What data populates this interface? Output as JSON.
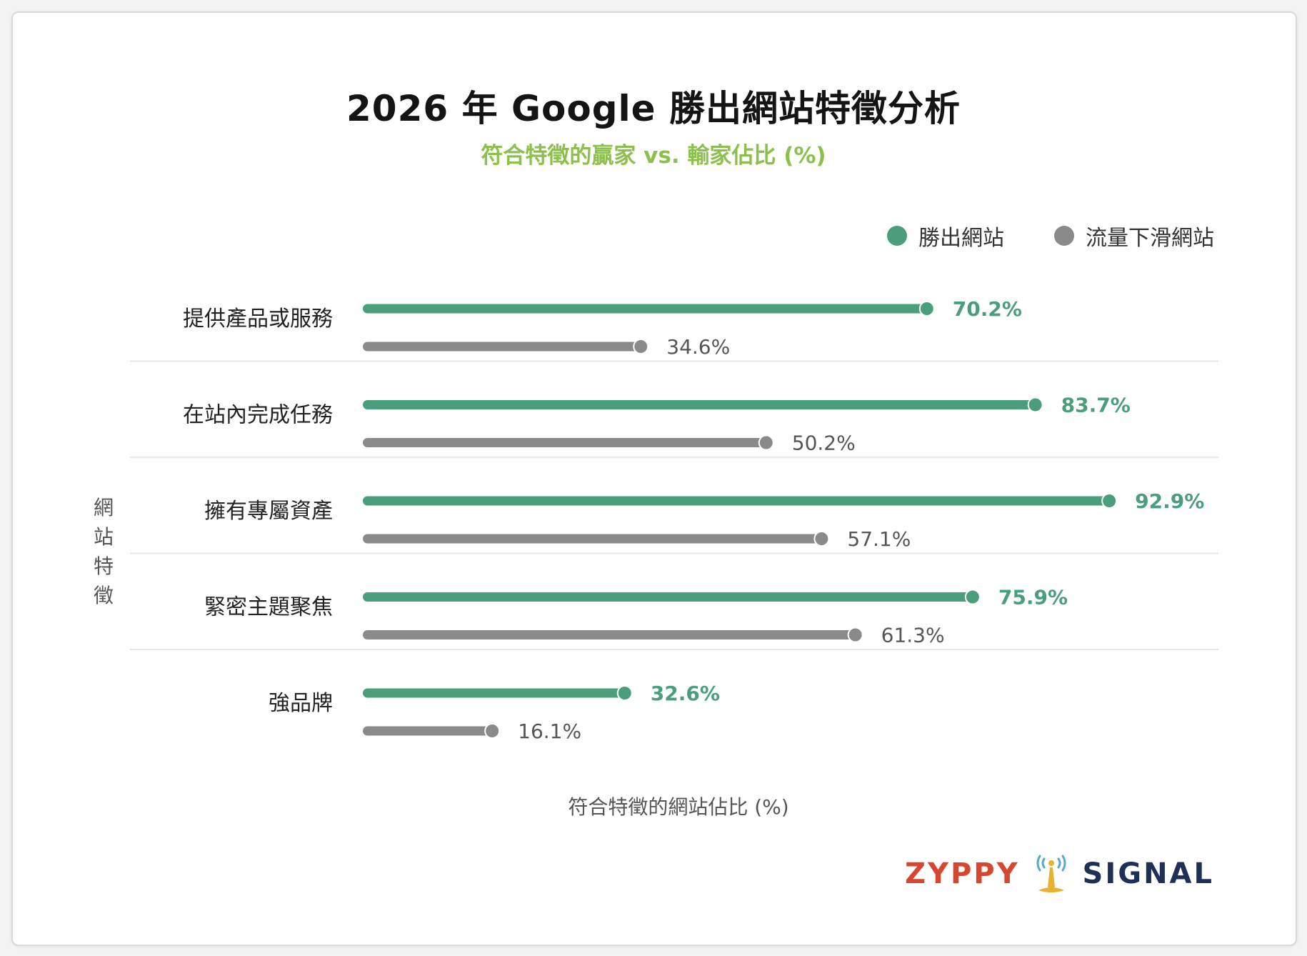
{
  "title": "2026 年 Google 勝出網站特徵分析",
  "subtitle": "符合特徵的贏家 vs. 輸家佔比 (%)",
  "colors": {
    "winner": "#4a9e7c",
    "loser": "#8a8a8a",
    "subtitle": "#8cc04a",
    "logo_left": "#d9462f",
    "logo_right": "#1f3056",
    "logo_icon": "#e8b12e"
  },
  "logo": {
    "left_text": "ZYPPY",
    "right_text": "SIGNAL",
    "icon": "antenna-icon"
  },
  "chart_data": {
    "type": "bar",
    "orientation": "horizontal",
    "style": "lollipop",
    "ylabel": "網站特徵",
    "xlabel": "符合特徵的網站佔比 (%)",
    "xlim": [
      0,
      100
    ],
    "grid": false,
    "legend_placement": "top-right",
    "categories": [
      "提供產品或服務",
      "在站內完成任務",
      "擁有專屬資產",
      "緊密主題聚焦",
      "強品牌"
    ],
    "series": [
      {
        "name": "勝出網站",
        "values": [
          70.2,
          83.7,
          92.9,
          75.9,
          32.6
        ],
        "labels": [
          "70.2%",
          "83.7%",
          "92.9%",
          "75.9%",
          "32.6%"
        ]
      },
      {
        "name": "流量下滑網站",
        "values": [
          34.6,
          50.2,
          57.1,
          61.3,
          16.1
        ],
        "labels": [
          "34.6%",
          "50.2%",
          "57.1%",
          "61.3%",
          "16.1%"
        ]
      }
    ]
  }
}
